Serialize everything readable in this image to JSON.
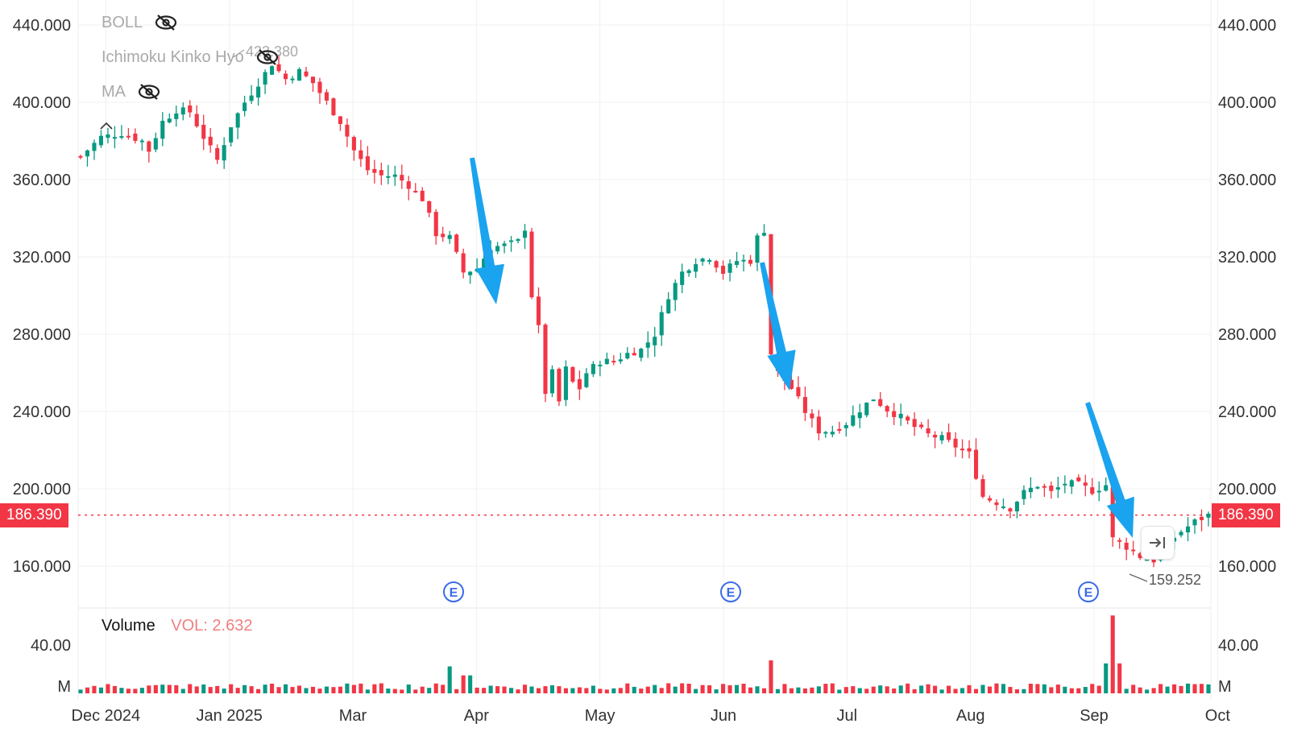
{
  "indicators": [
    {
      "name": "BOLL",
      "visibility_icon": "eye-off-icon"
    },
    {
      "name": "Ichimoku Kinko Hyo",
      "visibility_icon": "eye-off-icon"
    },
    {
      "name": "MA",
      "visibility_icon": "eye-off-icon"
    }
  ],
  "price_axis": {
    "ticks": [
      "440.000",
      "400.000",
      "360.000",
      "320.000",
      "280.000",
      "240.000",
      "200.000",
      "160.000"
    ]
  },
  "last_price": "186.390",
  "annotations": {
    "high_label": "423.380",
    "low_label": "159.252",
    "earnings_marker": "E"
  },
  "volume": {
    "title": "Volume",
    "value_label": "VOL: 2.632",
    "ticks": [
      "40.00",
      "M"
    ]
  },
  "time_axis": [
    "Dec 2024",
    "Jan 2025",
    "Mar",
    "Apr",
    "May",
    "Jun",
    "Jul",
    "Aug",
    "Sep",
    "Oct"
  ],
  "colors": {
    "up": "#089981",
    "down": "#f23645",
    "arrow": "#1aa3ef",
    "grid": "#f0f0f0",
    "earnings": "#3b6be8"
  },
  "controls": {
    "scroll_to_latest_icon": "scroll-to-latest-icon"
  },
  "chart_data": {
    "type": "candlestick",
    "ylim": [
      140,
      450
    ],
    "price_levels": [
      440,
      400,
      360,
      320,
      280,
      240,
      200,
      160
    ],
    "current_price": 186.39,
    "period_high": 423.38,
    "period_low": 159.252,
    "close_path": [
      [
        0,
        372
      ],
      [
        3,
        382
      ],
      [
        6,
        384
      ],
      [
        9,
        380
      ],
      [
        10,
        375
      ],
      [
        12,
        390
      ],
      [
        14,
        396
      ],
      [
        16,
        395
      ],
      [
        18,
        382
      ],
      [
        20,
        370
      ],
      [
        22,
        388
      ],
      [
        24,
        400
      ],
      [
        26,
        410
      ],
      [
        28,
        420
      ],
      [
        30,
        412
      ],
      [
        32,
        416
      ],
      [
        34,
        410
      ],
      [
        36,
        400
      ],
      [
        38,
        390
      ],
      [
        40,
        375
      ],
      [
        42,
        365
      ],
      [
        44,
        362
      ],
      [
        46,
        362
      ],
      [
        48,
        357
      ],
      [
        50,
        350
      ],
      [
        52,
        332
      ],
      [
        54,
        330
      ],
      [
        56,
        312
      ],
      [
        58,
        314
      ],
      [
        60,
        325
      ],
      [
        62,
        326
      ],
      [
        64,
        328
      ],
      [
        65,
        335
      ],
      [
        66,
        300
      ],
      [
        67,
        283
      ],
      [
        68,
        250
      ],
      [
        69,
        260
      ],
      [
        70,
        245
      ],
      [
        71,
        262
      ],
      [
        72,
        255
      ],
      [
        73,
        252
      ],
      [
        74,
        260
      ],
      [
        76,
        266
      ],
      [
        78,
        266
      ],
      [
        80,
        270
      ],
      [
        82,
        272
      ],
      [
        84,
        280
      ],
      [
        86,
        300
      ],
      [
        88,
        312
      ],
      [
        90,
        318
      ],
      [
        92,
        320
      ],
      [
        94,
        312
      ],
      [
        96,
        318
      ],
      [
        98,
        318
      ],
      [
        99,
        330
      ],
      [
        100,
        334
      ],
      [
        101,
        270
      ],
      [
        102,
        260
      ],
      [
        104,
        252
      ],
      [
        106,
        240
      ],
      [
        108,
        230
      ],
      [
        110,
        230
      ],
      [
        112,
        234
      ],
      [
        114,
        241
      ],
      [
        116,
        247
      ],
      [
        118,
        241
      ],
      [
        120,
        237
      ],
      [
        122,
        232
      ],
      [
        124,
        228
      ],
      [
        126,
        226
      ],
      [
        128,
        222
      ],
      [
        130,
        218
      ],
      [
        132,
        196
      ],
      [
        134,
        193
      ],
      [
        136,
        190
      ],
      [
        138,
        198
      ],
      [
        140,
        202
      ],
      [
        142,
        198
      ],
      [
        144,
        203
      ],
      [
        146,
        202
      ],
      [
        148,
        199
      ],
      [
        150,
        202
      ],
      [
        151,
        174
      ],
      [
        153,
        170
      ],
      [
        155,
        165
      ],
      [
        157,
        163
      ],
      [
        159,
        172
      ],
      [
        161,
        178
      ],
      [
        163,
        183
      ],
      [
        165,
        186.39
      ]
    ],
    "earnings_dates": [
      "Apr",
      "Jun",
      "Sep"
    ],
    "volume_ylim": [
      0,
      50
    ],
    "volume_spikes": [
      {
        "index": 54,
        "value": 9
      },
      {
        "index": 56,
        "value": 6
      },
      {
        "index": 57,
        "value": 6
      },
      {
        "index": 101,
        "value": 11
      },
      {
        "index": 150,
        "value": 10
      },
      {
        "index": 151,
        "value": 26
      },
      {
        "index": 152,
        "value": 10
      }
    ],
    "volume_baseline": 2.632
  }
}
